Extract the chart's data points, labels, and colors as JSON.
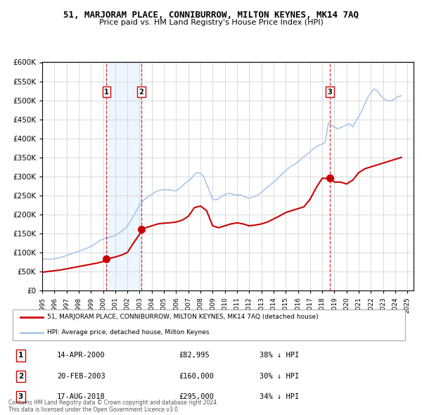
{
  "title": "51, MARJORAM PLACE, CONNIBURROW, MILTON KEYNES, MK14 7AQ",
  "subtitle": "Price paid vs. HM Land Registry's House Price Index (HPI)",
  "legend_line1": "51, MARJORAM PLACE, CONNIBURROW, MILTON KEYNES, MK14 7AQ (detached house)",
  "legend_line2": "HPI: Average price, detached house, Milton Keynes",
  "footer1": "Contains HM Land Registry data © Crown copyright and database right 2024.",
  "footer2": "This data is licensed under the Open Government Licence v3.0.",
  "sales": [
    {
      "num": 1,
      "date": "14-APR-2000",
      "price": 82995,
      "pct": "38%",
      "year_x": 2000.28
    },
    {
      "num": 2,
      "date": "20-FEB-2003",
      "price": 160000,
      "pct": "30%",
      "year_x": 2003.13
    },
    {
      "num": 3,
      "date": "17-AUG-2018",
      "price": 295000,
      "pct": "34%",
      "year_x": 2018.63
    }
  ],
  "hpi_color": "#a8c8e8",
  "price_color": "#cc0000",
  "background_color": "#ffffff",
  "grid_color": "#cccccc",
  "ylim": [
    0,
    600000
  ],
  "yticks": [
    0,
    50000,
    100000,
    150000,
    200000,
    250000,
    300000,
    350000,
    400000,
    450000,
    500000,
    550000,
    600000
  ],
  "xlim_start": 1995,
  "xlim_end": 2025.5,
  "hpi_data": {
    "years": [
      1995.0,
      1995.25,
      1995.5,
      1995.75,
      1996.0,
      1996.25,
      1996.5,
      1996.75,
      1997.0,
      1997.25,
      1997.5,
      1997.75,
      1998.0,
      1998.25,
      1998.5,
      1998.75,
      1999.0,
      1999.25,
      1999.5,
      1999.75,
      2000.0,
      2000.25,
      2000.5,
      2000.75,
      2001.0,
      2001.25,
      2001.5,
      2001.75,
      2002.0,
      2002.25,
      2002.5,
      2002.75,
      2003.0,
      2003.25,
      2003.5,
      2003.75,
      2004.0,
      2004.25,
      2004.5,
      2004.75,
      2005.0,
      2005.25,
      2005.5,
      2005.75,
      2006.0,
      2006.25,
      2006.5,
      2006.75,
      2007.0,
      2007.25,
      2007.5,
      2007.75,
      2008.0,
      2008.25,
      2008.5,
      2008.75,
      2009.0,
      2009.25,
      2009.5,
      2009.75,
      2010.0,
      2010.25,
      2010.5,
      2010.75,
      2011.0,
      2011.25,
      2011.5,
      2011.75,
      2012.0,
      2012.25,
      2012.5,
      2012.75,
      2013.0,
      2013.25,
      2013.5,
      2013.75,
      2014.0,
      2014.25,
      2014.5,
      2014.75,
      2015.0,
      2015.25,
      2015.5,
      2015.75,
      2016.0,
      2016.25,
      2016.5,
      2016.75,
      2017.0,
      2017.25,
      2017.5,
      2017.75,
      2018.0,
      2018.25,
      2018.5,
      2018.75,
      2019.0,
      2019.25,
      2019.5,
      2019.75,
      2020.0,
      2020.25,
      2020.5,
      2020.75,
      2021.0,
      2021.25,
      2021.5,
      2021.75,
      2022.0,
      2022.25,
      2022.5,
      2022.75,
      2023.0,
      2023.25,
      2023.5,
      2023.75,
      2024.0,
      2024.25,
      2024.5
    ],
    "values": [
      82000,
      83000,
      82000,
      82500,
      84000,
      85000,
      87000,
      89000,
      92000,
      95000,
      98000,
      100000,
      103000,
      106000,
      109000,
      112000,
      116000,
      120000,
      126000,
      132000,
      135000,
      138000,
      140000,
      142000,
      145000,
      150000,
      155000,
      162000,
      170000,
      182000,
      196000,
      210000,
      225000,
      235000,
      242000,
      248000,
      252000,
      258000,
      262000,
      264000,
      265000,
      265000,
      264000,
      263000,
      262000,
      268000,
      275000,
      282000,
      288000,
      295000,
      305000,
      310000,
      308000,
      300000,
      280000,
      260000,
      240000,
      238000,
      242000,
      248000,
      252000,
      255000,
      255000,
      252000,
      250000,
      252000,
      248000,
      245000,
      242000,
      245000,
      248000,
      252000,
      258000,
      265000,
      272000,
      278000,
      285000,
      292000,
      300000,
      308000,
      315000,
      322000,
      328000,
      332000,
      338000,
      345000,
      352000,
      358000,
      365000,
      372000,
      378000,
      382000,
      385000,
      390000,
      440000,
      435000,
      430000,
      425000,
      428000,
      432000,
      435000,
      438000,
      430000,
      445000,
      458000,
      472000,
      492000,
      508000,
      520000,
      530000,
      525000,
      515000,
      505000,
      500000,
      498000,
      500000,
      505000,
      510000,
      512000
    ]
  },
  "price_data": {
    "years": [
      1995.0,
      1995.5,
      1996.0,
      1996.5,
      1997.0,
      1997.5,
      1998.0,
      1998.5,
      1999.0,
      1999.5,
      2000.0,
      2000.28,
      2000.5,
      2001.0,
      2001.5,
      2002.0,
      2002.5,
      2003.0,
      2003.13,
      2003.5,
      2004.0,
      2004.5,
      2005.0,
      2005.5,
      2006.0,
      2006.5,
      2007.0,
      2007.5,
      2008.0,
      2008.5,
      2009.0,
      2009.5,
      2010.0,
      2010.5,
      2011.0,
      2011.5,
      2012.0,
      2012.5,
      2013.0,
      2013.5,
      2014.0,
      2014.5,
      2015.0,
      2015.5,
      2016.0,
      2016.5,
      2017.0,
      2017.5,
      2018.0,
      2018.63,
      2019.0,
      2019.5,
      2020.0,
      2020.5,
      2021.0,
      2021.5,
      2022.0,
      2022.5,
      2023.0,
      2023.5,
      2024.0,
      2024.5
    ],
    "values": [
      48000,
      50000,
      52000,
      54000,
      57000,
      60000,
      63000,
      66000,
      69000,
      72000,
      76000,
      82995,
      84000,
      88000,
      93000,
      100000,
      125000,
      148000,
      160000,
      165000,
      170000,
      175000,
      177000,
      178000,
      180000,
      185000,
      195000,
      218000,
      222000,
      210000,
      170000,
      165000,
      170000,
      175000,
      178000,
      175000,
      170000,
      172000,
      175000,
      180000,
      188000,
      196000,
      205000,
      210000,
      215000,
      220000,
      240000,
      270000,
      295000,
      295000,
      285000,
      285000,
      280000,
      290000,
      310000,
      320000,
      325000,
      330000,
      335000,
      340000,
      345000,
      350000
    ]
  }
}
